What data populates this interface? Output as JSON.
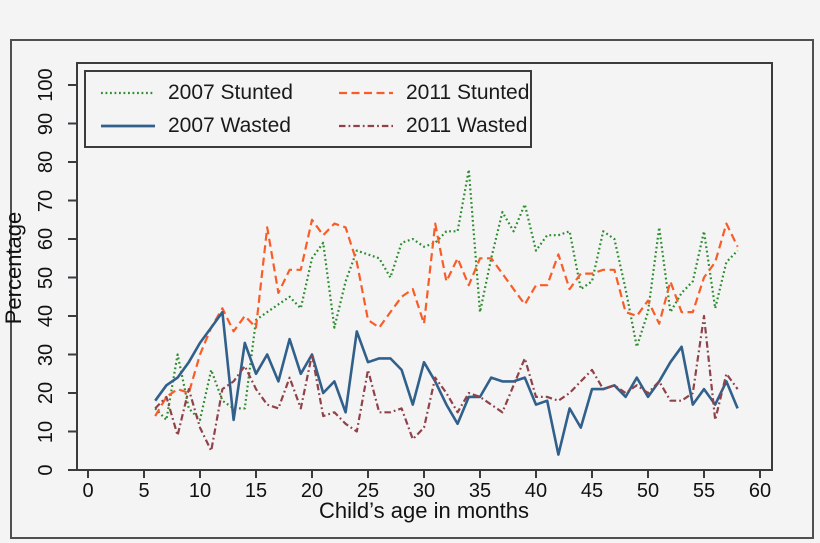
{
  "figure": {
    "background": "#f4f4f5",
    "outer_border_color": "#4f4f52",
    "frame_color": "#3b3b3e",
    "text_color": "#111111"
  },
  "chart_data": {
    "type": "line",
    "title": "",
    "xlabel": "Child’s age in months",
    "ylabel": "Percentage",
    "xlim": [
      0,
      60
    ],
    "ylim": [
      0,
      100
    ],
    "x_ticks": [
      0,
      5,
      10,
      15,
      20,
      25,
      30,
      35,
      40,
      45,
      50,
      55,
      60
    ],
    "y_ticks": [
      0,
      10,
      20,
      30,
      40,
      50,
      60,
      70,
      80,
      90,
      100
    ],
    "grid": false,
    "legend_position": "top-left-inside",
    "months": [
      6,
      7,
      8,
      9,
      10,
      11,
      12,
      13,
      14,
      15,
      16,
      17,
      18,
      19,
      20,
      21,
      22,
      23,
      24,
      25,
      26,
      27,
      28,
      29,
      30,
      31,
      32,
      33,
      34,
      35,
      36,
      37,
      38,
      39,
      40,
      41,
      42,
      43,
      44,
      45,
      46,
      47,
      48,
      49,
      50,
      51,
      52,
      53,
      54,
      55,
      56,
      57,
      58
    ],
    "series": [
      {
        "name": "2007 Stunted",
        "color": "#2e8b2e",
        "style": "dotted",
        "values": [
          16,
          13,
          30,
          16,
          13,
          26,
          18,
          16,
          16,
          39,
          41,
          43,
          45,
          42,
          55,
          59,
          37,
          49,
          57,
          56,
          55,
          50,
          59,
          60,
          58,
          59,
          62,
          62,
          78,
          41,
          55,
          67,
          62,
          69,
          57,
          61,
          61,
          62,
          47,
          49,
          62,
          60,
          47,
          32,
          41,
          63,
          41,
          46,
          49,
          62,
          42,
          54,
          57
        ]
      },
      {
        "name": "2011 Stunted",
        "color": "#f95d27",
        "style": "dashed",
        "values": [
          14,
          19,
          21,
          20,
          30,
          37,
          42,
          36,
          40,
          37,
          63,
          46,
          52,
          52,
          65,
          61,
          64,
          63,
          54,
          39,
          37,
          41,
          45,
          47,
          38,
          64,
          49,
          55,
          48,
          55,
          55,
          51,
          47,
          43,
          48,
          48,
          56,
          47,
          51,
          51,
          52,
          52,
          41,
          40,
          44,
          38,
          49,
          41,
          41,
          50,
          54,
          64,
          58
        ]
      },
      {
        "name": "2007 Wasted",
        "color": "#31608b",
        "style": "solid",
        "values": [
          18,
          22,
          24,
          28,
          33,
          37,
          41,
          13,
          33,
          25,
          30,
          23,
          34,
          25,
          30,
          20,
          23,
          15,
          36,
          28,
          29,
          29,
          26,
          17,
          28,
          23,
          17,
          12,
          19,
          19,
          24,
          23,
          23,
          24,
          17,
          18,
          4,
          16,
          11,
          21,
          21,
          22,
          19,
          24,
          19,
          23,
          28,
          32,
          17,
          21,
          17,
          23,
          16
        ]
      },
      {
        "name": "2011 Wasted",
        "color": "#8f4349",
        "style": "dash-dot",
        "values": [
          16,
          19,
          9,
          21,
          11,
          5,
          21,
          23,
          27,
          21,
          17,
          16,
          24,
          16,
          30,
          14,
          15,
          12,
          10,
          26,
          15,
          15,
          16,
          8,
          11,
          24,
          20,
          15,
          20,
          19,
          17,
          15,
          22,
          29,
          19,
          19,
          18,
          20,
          23,
          26,
          21,
          22,
          20,
          22,
          20,
          23,
          18,
          18,
          20,
          40,
          13,
          25,
          21
        ]
      }
    ]
  }
}
